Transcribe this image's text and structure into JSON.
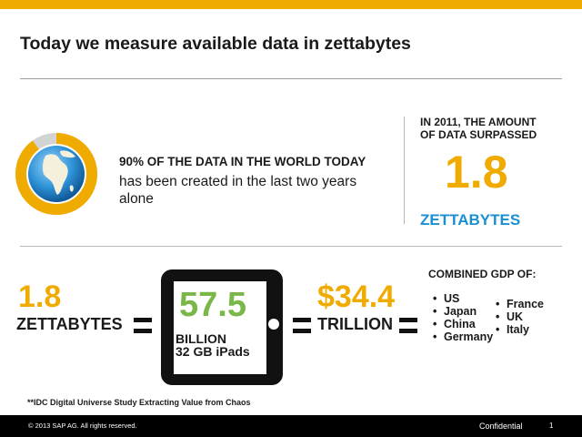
{
  "slide": {
    "title": "Today we measure available data in zettabytes"
  },
  "top_stat": {
    "headline": "90% OF THE DATA IN THE WORLD TODAY",
    "body": "has been created in the last two years alone",
    "ring_fraction": 0.9,
    "icon": "globe-icon"
  },
  "right_stat": {
    "label_line1": "IN 2011, THE AMOUNT",
    "label_line2": "OF DATA SURPASSED",
    "value": "1.8",
    "unit": "ZETTABYTES"
  },
  "equation": {
    "left_value": "1.8",
    "left_unit": "ZETTABYTES",
    "ipad_value": "57.5",
    "ipad_line1": "BILLION",
    "ipad_line2": "32 GB iPads",
    "right_value": "$34.4",
    "right_unit": "TRILLION"
  },
  "gdp": {
    "label": "COMBINED GDP OF:",
    "col1": [
      "US",
      "Japan",
      "China",
      "Germany"
    ],
    "col2": [
      "France",
      "UK",
      "Italy"
    ]
  },
  "footnote": "**IDC Digital Universe Study Extracting Value from Chaos",
  "footer": {
    "copyright": "© 2013 SAP AG. All rights reserved.",
    "confidential": "Confidential",
    "page_number": "1"
  },
  "colors": {
    "accent_gold": "#f0ab00",
    "accent_blue": "#1a8fd1",
    "accent_green": "#7ab648"
  }
}
